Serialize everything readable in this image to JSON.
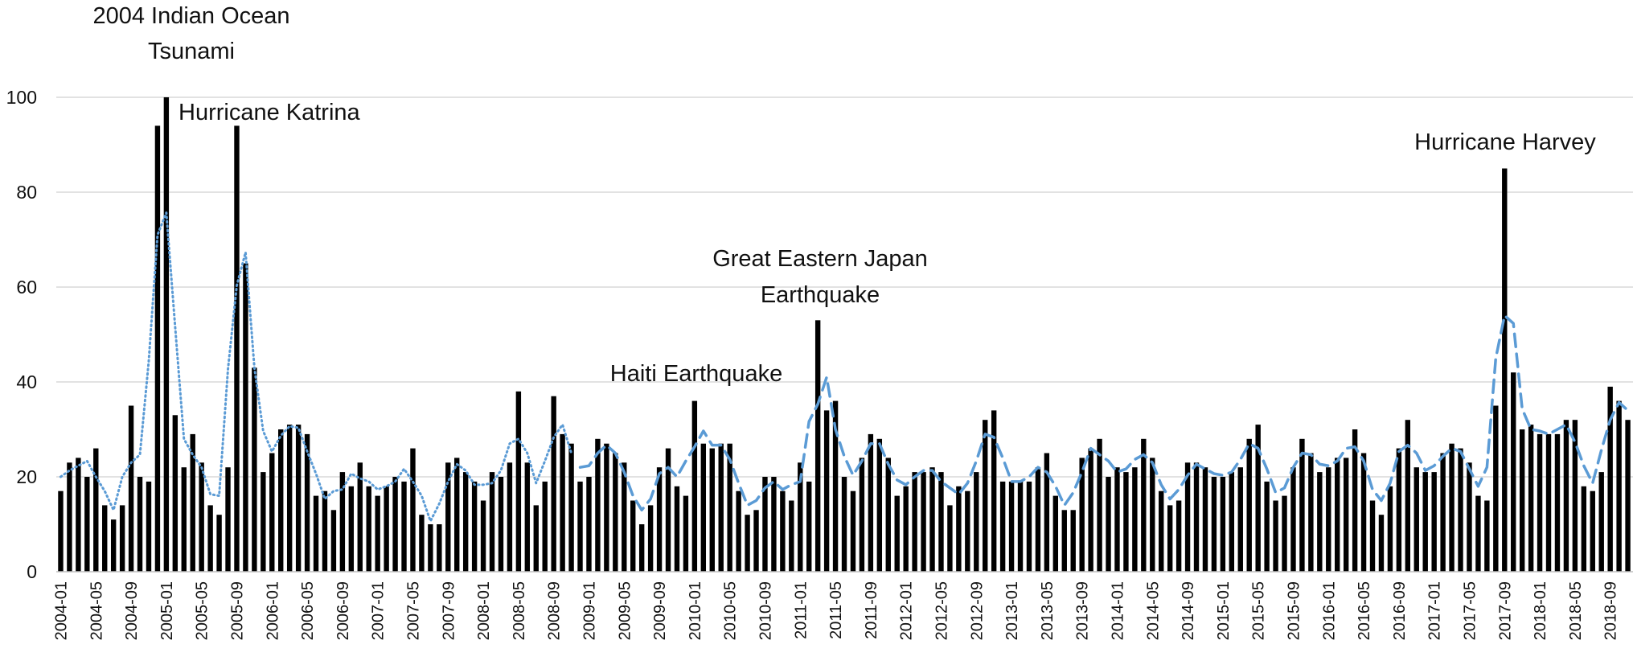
{
  "chart_data": {
    "type": "bar",
    "title": "",
    "xlabel": "",
    "ylabel": "",
    "ylim": [
      0,
      100
    ],
    "yticks": [
      0,
      20,
      40,
      60,
      80,
      100
    ],
    "grid": true,
    "x_tick_labels": [
      "2004-01",
      "2004-05",
      "2004-09",
      "2005-01",
      "2005-05",
      "2005-09",
      "2006-01",
      "2006-05",
      "2006-09",
      "2007-01",
      "2007-05",
      "2007-09",
      "2008-01",
      "2008-05",
      "2008-09",
      "2009-01",
      "2009-05",
      "2009-09",
      "2010-01",
      "2010-05",
      "2010-09",
      "2011-01",
      "2011-05",
      "2011-09",
      "2012-01",
      "2012-05",
      "2012-09",
      "2013-01",
      "2013-05",
      "2013-09",
      "2014-01",
      "2014-05",
      "2014-09",
      "2015-01",
      "2015-05",
      "2015-09",
      "2016-01",
      "2016-05",
      "2016-09",
      "2017-01",
      "2017-05",
      "2017-09",
      "2018-01",
      "2018-05",
      "2018-09"
    ],
    "start_month": "2004-01",
    "values": [
      17,
      23,
      24,
      20,
      26,
      14,
      11,
      14,
      35,
      20,
      19,
      94,
      100,
      33,
      22,
      29,
      23,
      14,
      12,
      22,
      94,
      65,
      43,
      21,
      25,
      30,
      31,
      31,
      29,
      16,
      17,
      13,
      21,
      18,
      23,
      18,
      16,
      18,
      20,
      19,
      26,
      12,
      10,
      10,
      23,
      24,
      21,
      19,
      15,
      21,
      20,
      23,
      38,
      23,
      14,
      19,
      37,
      29,
      27,
      19,
      20,
      28,
      27,
      25,
      23,
      15,
      10,
      14,
      22,
      26,
      18,
      16,
      36,
      27,
      26,
      27,
      27,
      17,
      12,
      13,
      20,
      20,
      17,
      15,
      23,
      19,
      53,
      34,
      36,
      20,
      17,
      24,
      29,
      28,
      24,
      16,
      18,
      21,
      21,
      22,
      21,
      14,
      18,
      17,
      21,
      32,
      34,
      19,
      19,
      19,
      19,
      22,
      25,
      16,
      13,
      13,
      24,
      26,
      28,
      20,
      22,
      21,
      22,
      28,
      24,
      17,
      14,
      15,
      23,
      23,
      22,
      20,
      20,
      21,
      22,
      28,
      31,
      19,
      15,
      16,
      22,
      28,
      25,
      21,
      22,
      24,
      24,
      30,
      25,
      15,
      12,
      18,
      26,
      32,
      22,
      21,
      21,
      25,
      27,
      26,
      23,
      16,
      15,
      35,
      85,
      42,
      30,
      31,
      29,
      29,
      29,
      32,
      32,
      18,
      17,
      21,
      39,
      36,
      32
    ],
    "series": [
      {
        "style": "dotted",
        "color": "#5b9bd5",
        "start": 0,
        "end": 59
      },
      {
        "style": "dashed",
        "color": "#5b9bd5",
        "start": 59,
        "end": 179
      }
    ],
    "annotations": [
      {
        "lines": [
          "2004 Indian Ocean",
          "Tsunami"
        ]
      },
      {
        "lines": [
          "Hurricane Katrina"
        ]
      },
      {
        "lines": [
          "Haiti Earthquake"
        ]
      },
      {
        "lines": [
          "Great Eastern Japan",
          "Earthquake"
        ]
      },
      {
        "lines": [
          "Hurricane Harvey"
        ]
      }
    ]
  }
}
